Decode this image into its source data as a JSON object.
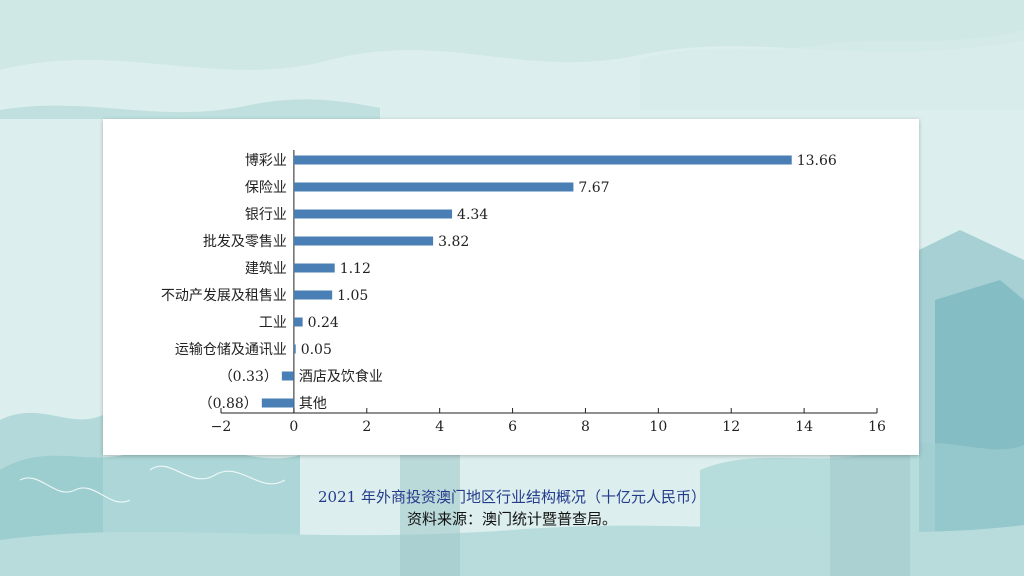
{
  "caption": {
    "title": "2021 年外商投资澳门地区行业结构概况（十亿元人民币）",
    "source": "资料来源：澳门统计暨普查局。"
  },
  "chart_data": {
    "type": "bar",
    "orientation": "horizontal",
    "categories": [
      "博彩业",
      "保险业",
      "银行业",
      "批发及零售业",
      "建筑业",
      "不动产发展及租售业",
      "工业",
      "运输仓储及通讯业",
      "酒店及饮食业",
      "其他"
    ],
    "values": [
      13.66,
      7.67,
      4.34,
      3.82,
      1.12,
      1.05,
      0.24,
      0.05,
      -0.33,
      -0.88
    ],
    "value_labels": [
      "13.66",
      "7.67",
      "4.34",
      "3.82",
      "1.12",
      "1.05",
      "0.24",
      "0.05",
      "（0.33）",
      "（0.88）"
    ],
    "xlim": [
      -2,
      16
    ],
    "xticks": [
      -2,
      0,
      2,
      4,
      6,
      8,
      10,
      12,
      14,
      16
    ],
    "xtick_labels": [
      "−2",
      "0",
      "2",
      "4",
      "6",
      "8",
      "10",
      "12",
      "14",
      "16"
    ],
    "bar_color": "#4a7fb5",
    "grid": false
  }
}
